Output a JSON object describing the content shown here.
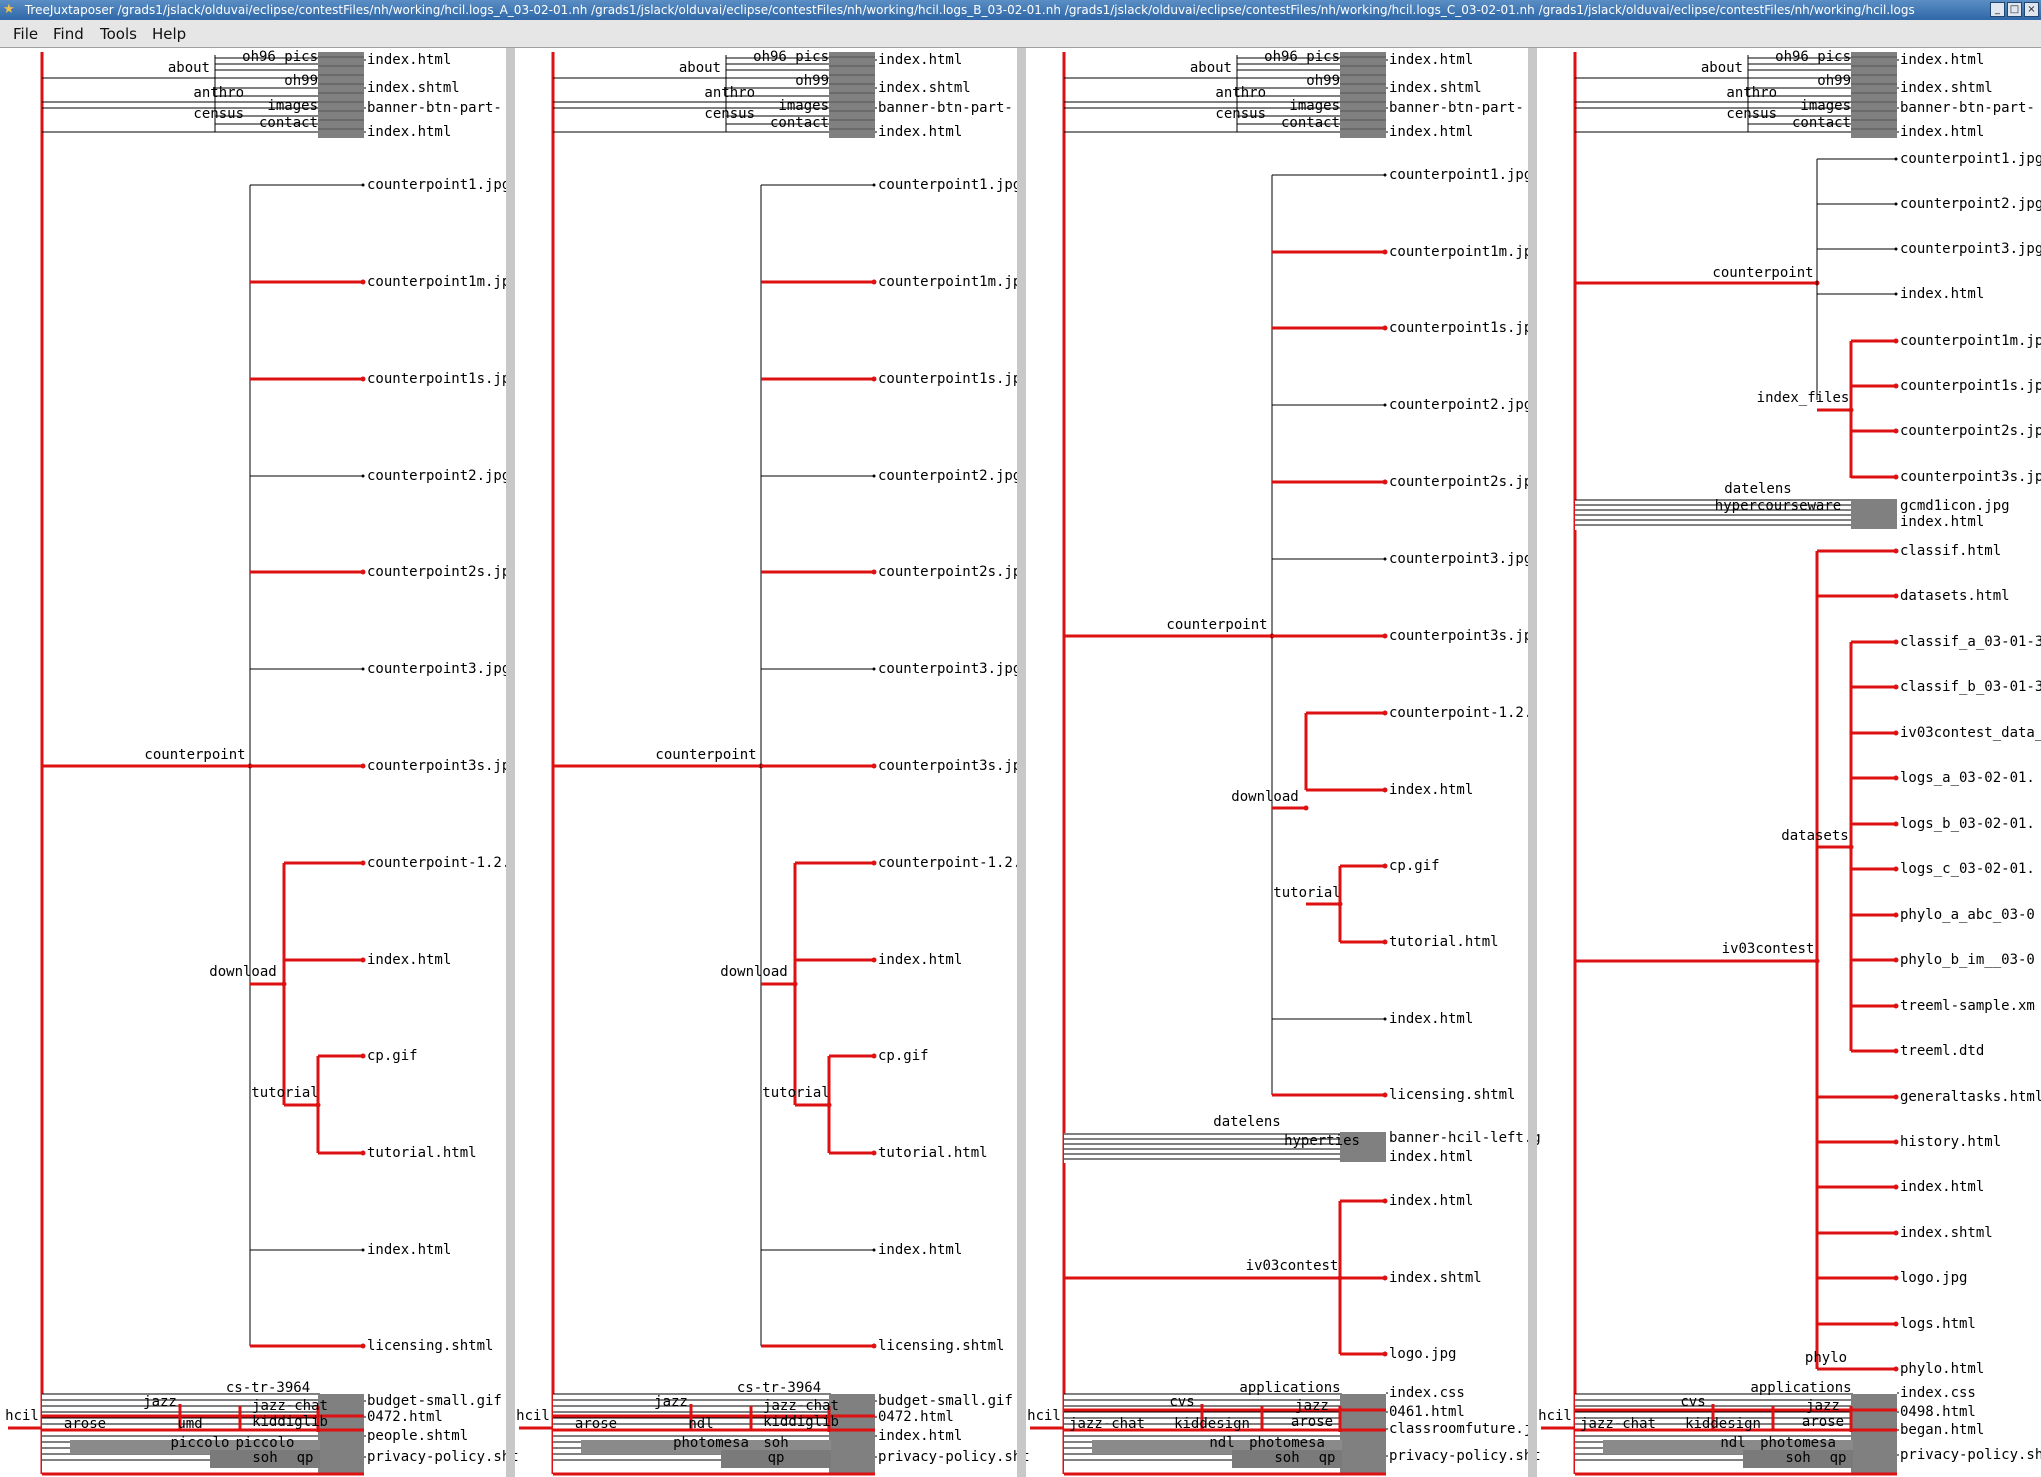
{
  "window": {
    "title": "TreeJuxtaposer /grads1/jslack/olduvai/eclipse/contestFiles/nh/working/hcil.logs_A_03-02-01.nh /grads1/jslack/olduvai/eclipse/contestFiles/nh/working/hcil.logs_B_03-02-01.nh /grads1/jslack/olduvai/eclipse/contestFiles/nh/working/hcil.logs_C_03-02-01.nh /grads1/jslack/olduvai/eclipse/contestFiles/nh/working/hcil.logs",
    "icon": "tree-app-icon",
    "buttons": [
      "minimize-icon",
      "maximize-icon",
      "close-icon"
    ]
  },
  "menu": [
    "File",
    "Find",
    "Tools",
    "Help"
  ],
  "colors": {
    "highlight": "#dd1111",
    "tree_line": "#000000",
    "dense": "#808080",
    "gutter": "#c8c8c8"
  },
  "panels": [
    {
      "top_internal": [
        "about",
        "oh96_pics",
        "oh99",
        "anthro",
        "images",
        "census",
        "contact"
      ],
      "top_leaves": [
        "index.html",
        "index.shtml",
        "banner-btn-part-",
        "index.html"
      ],
      "focus_node": "counterpoint",
      "focus_leaves": [
        "counterpoint1.jpg",
        "counterpoint1m.jp",
        "counterpoint1s.jp",
        "counterpoint2.jpg",
        "counterpoint2s.jp",
        "counterpoint3.jpg",
        "counterpoint3s.jp"
      ],
      "download_node": "download",
      "download_leaves": [
        "counterpoint-1.2.",
        "index.html"
      ],
      "tutorial_node": "tutorial",
      "tutorial_leaves": [
        "cp.gif",
        "tutorial.html"
      ],
      "tail_leaves": [
        "index.html",
        "licensing.shtml"
      ],
      "bottom_labels": [
        "cs-tr-3964",
        "jazz",
        "jazz-chat",
        "hcil",
        "arose",
        "umd",
        "kiddiglib",
        "piccolo",
        "piccolo",
        "soh",
        "qp"
      ],
      "bottom_leaves": [
        "budget-small.gif",
        "0472.html",
        "people.shtml",
        "privacy-policy.sht"
      ]
    },
    {
      "top_internal": [
        "about",
        "oh96_pics",
        "oh99",
        "anthro",
        "images",
        "census",
        "contact"
      ],
      "top_leaves": [
        "index.html",
        "index.shtml",
        "banner-btn-part-",
        "index.html"
      ],
      "focus_node": "counterpoint",
      "focus_leaves": [
        "counterpoint1.jpg",
        "counterpoint1m.jp",
        "counterpoint1s.jp",
        "counterpoint2.jpg",
        "counterpoint2s.jp",
        "counterpoint3.jpg",
        "counterpoint3s.jp"
      ],
      "download_node": "download",
      "download_leaves": [
        "counterpoint-1.2.",
        "index.html"
      ],
      "tutorial_node": "tutorial",
      "tutorial_leaves": [
        "cp.gif",
        "tutorial.html"
      ],
      "tail_leaves": [
        "index.html",
        "licensing.shtml"
      ],
      "bottom_labels": [
        "cs-tr-3964",
        "jazz",
        "jazz-chat",
        "hcil",
        "arose",
        "ndl",
        "kiddiglib",
        "photomesa",
        "soh",
        "qp"
      ],
      "bottom_leaves": [
        "budget-small.gif",
        "0472.html",
        "index.html",
        "privacy-policy.sht"
      ]
    },
    {
      "top_internal": [
        "about",
        "oh96_pics",
        "oh99",
        "anthro",
        "images",
        "census",
        "contact"
      ],
      "top_leaves": [
        "index.html",
        "index.shtml",
        "banner-btn-part-",
        "index.html"
      ],
      "focus_node": "counterpoint",
      "focus_leaves": [
        "counterpoint1.jpg",
        "counterpoint1m.jp",
        "counterpoint1s.jp",
        "counterpoint2.jpg",
        "counterpoint2s.jp",
        "counterpoint3.jpg",
        "counterpoint3s.jp"
      ],
      "download_node": "download",
      "download_leaves": [
        "counterpoint-1.2.",
        "index.html"
      ],
      "tutorial_node": "tutorial",
      "tutorial_leaves": [
        "cp.gif",
        "tutorial.html"
      ],
      "tail_leaves": [
        "index.html",
        "licensing.shtml"
      ],
      "datelens_labels": [
        "datelens",
        "hyperties"
      ],
      "datelens_leaves": [
        "banner-hcil-left.g",
        "index.html"
      ],
      "iv03_node": "iv03contest",
      "iv03_leaves": [
        "index.html",
        "index.shtml",
        "logo.jpg"
      ],
      "bottom_labels": [
        "applications",
        "cvs",
        "jazz",
        "jazz-chat",
        "hcil",
        "kiddesign",
        "arose",
        "ndl",
        "photomesa",
        "soh",
        "qp"
      ],
      "bottom_leaves": [
        "index.css",
        "0461.html",
        "classroomfuture.j",
        "privacy-policy.sht"
      ]
    },
    {
      "top_internal": [
        "about",
        "oh96_pics",
        "oh99",
        "anthro",
        "images",
        "census",
        "contact"
      ],
      "top_leaves": [
        "index.html",
        "index.shtml",
        "banner-btn-part-",
        "index.html"
      ],
      "focus_node": "counterpoint",
      "focus_leaves": [
        "counterpoint1.jpg",
        "counterpoint2.jpg",
        "counterpoint3.jpg",
        "index.html"
      ],
      "files_node": "index_files",
      "files_leaves": [
        "counterpoint1m.jp",
        "counterpoint1s.jp",
        "counterpoint2s.jp",
        "counterpoint3s.jp"
      ],
      "datelens_labels": [
        "datelens",
        "hypercourseware"
      ],
      "datelens_leaves": [
        "gcmd1icon.jpg",
        "index.html"
      ],
      "iv03_node": "iv03contest",
      "iv03_top_leaves": [
        "classif.html",
        "datasets.html"
      ],
      "datasets_node": "datasets",
      "datasets_leaves": [
        "classif_a_03-01-3",
        "classif_b_03-01-3",
        "iv03contest_data_",
        "logs_a_03-02-01.",
        "logs_b_03-02-01.",
        "logs_c_03-02-01.",
        "phylo_a_abc_03-0",
        "phylo_b_im__03-0",
        "treeml-sample.xm",
        "treeml.dtd"
      ],
      "iv03_bottom_leaves": [
        "generaltasks.html",
        "history.html",
        "index.html",
        "index.shtml",
        "logo.jpg",
        "logs.html"
      ],
      "phylo_node": "phylo",
      "phylo_leaves": [
        "phylo.html"
      ],
      "bottom_labels": [
        "applications",
        "cvs",
        "jazz",
        "jazz-chat",
        "hcil",
        "kiddesign",
        "arose",
        "ndl",
        "photomesa",
        "soh",
        "qp"
      ],
      "bottom_leaves": [
        "index.css",
        "0498.html",
        "began.html",
        "privacy-policy.sht"
      ]
    }
  ]
}
